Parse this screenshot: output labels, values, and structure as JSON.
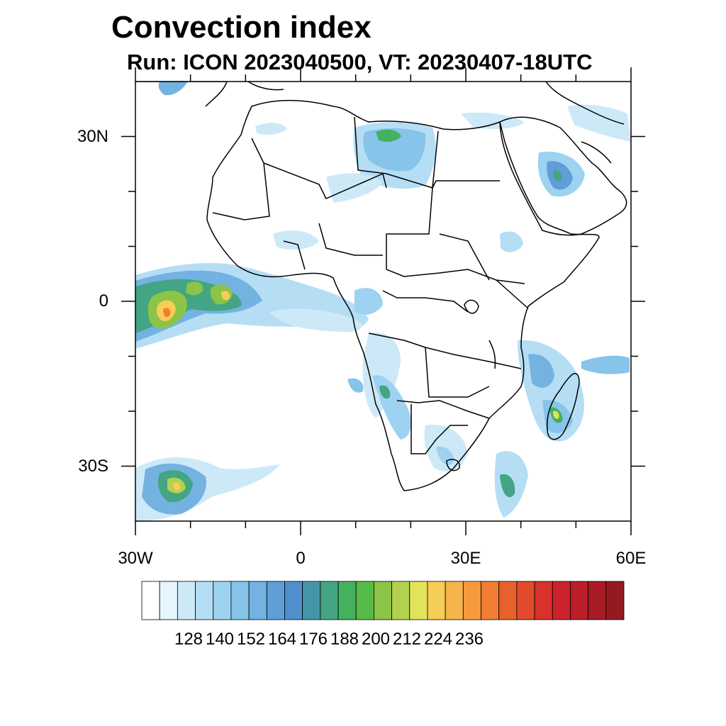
{
  "title": "Convection index",
  "subtitle": "Run: ICON 2023040500,  VT: 20230407-18UTC",
  "axes": {
    "x_ticks": [
      {
        "label": "30W",
        "lon": -30
      },
      {
        "label": "0",
        "lon": 0
      },
      {
        "label": "30E",
        "lon": 30
      },
      {
        "label": "60E",
        "lon": 60
      }
    ],
    "y_ticks": [
      {
        "label": "30N",
        "lat": 30
      },
      {
        "label": "0",
        "lat": 0
      },
      {
        "label": "30S",
        "lat": -30
      }
    ],
    "lon_range": [
      -30,
      60
    ],
    "lat_range": [
      -40,
      40
    ]
  },
  "colorbar": {
    "colors": [
      "#ffffff",
      "#e6f4fc",
      "#cde9f8",
      "#b5def5",
      "#9dd3f1",
      "#86c4ea",
      "#73b2e1",
      "#5f9ed6",
      "#4f8fcc",
      "#4595a8",
      "#43a583",
      "#44b15f",
      "#56bb47",
      "#8cc447",
      "#b2d24f",
      "#e3e35a",
      "#f6cd57",
      "#f7b44b",
      "#f69a3e",
      "#f17e33",
      "#e8612d",
      "#e14a2c",
      "#d9312c",
      "#cc232c",
      "#bb1d29",
      "#a81b24",
      "#931a20"
    ],
    "labels": [
      {
        "text": "128",
        "index": 3
      },
      {
        "text": "140",
        "index": 6
      },
      {
        "text": "152",
        "index": 9
      },
      {
        "text": "164",
        "index": 12
      },
      {
        "text": "176",
        "index": 15
      },
      {
        "text": "188",
        "index": 18
      },
      {
        "text": "200",
        "index": 21
      },
      {
        "text": "212",
        "index": 24
      },
      {
        "text": "224",
        "index": 27
      },
      {
        "text": "236",
        "index": 30
      }
    ]
  }
}
